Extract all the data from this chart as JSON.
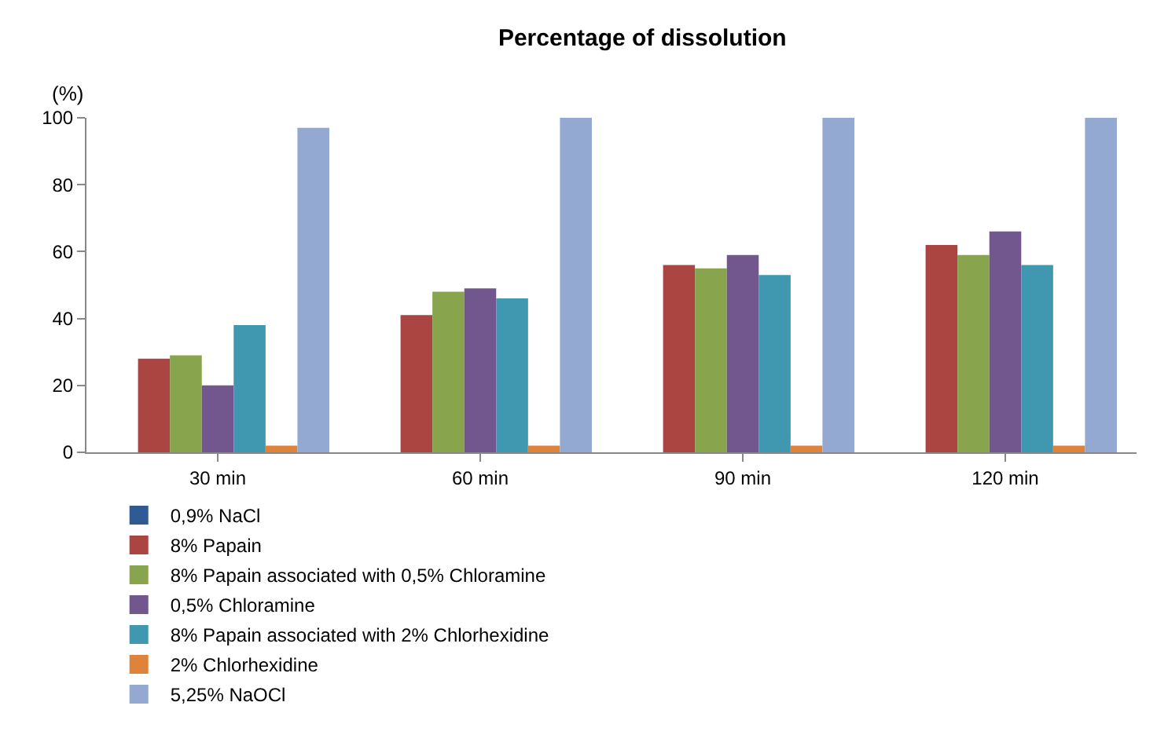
{
  "chart_data": {
    "type": "bar",
    "title": "Percentage of dissolution",
    "ylabel": "(%)",
    "categories": [
      "30 min",
      "60 min",
      "90 min",
      "120 min"
    ],
    "ylim": [
      0,
      100
    ],
    "yticks": [
      0,
      20,
      40,
      60,
      80,
      100
    ],
    "grid": false,
    "legend": "bottom",
    "series": [
      {
        "name": "0,9% NaCl",
        "color": "#2e5b94",
        "values": [
          0,
          0,
          0,
          0
        ]
      },
      {
        "name": "8% Papain",
        "color": "#ab4542",
        "values": [
          28,
          41,
          56,
          62
        ]
      },
      {
        "name": "8% Papain associated with 0,5% Chloramine",
        "color": "#88a44c",
        "values": [
          29,
          48,
          55,
          59
        ]
      },
      {
        "name": "0,5% Chloramine",
        "color": "#72578f",
        "values": [
          20,
          49,
          59,
          66
        ]
      },
      {
        "name": "8% Papain associated with 2% Chlorhexidine",
        "color": "#3f97b0",
        "values": [
          38,
          46,
          53,
          56
        ]
      },
      {
        "name": "2% Chlorhexidine",
        "color": "#e0833a",
        "values": [
          2,
          2,
          2,
          2
        ]
      },
      {
        "name": "5,25% NaOCl",
        "color": "#93a9d2",
        "values": [
          97,
          100,
          100,
          100
        ]
      }
    ]
  }
}
